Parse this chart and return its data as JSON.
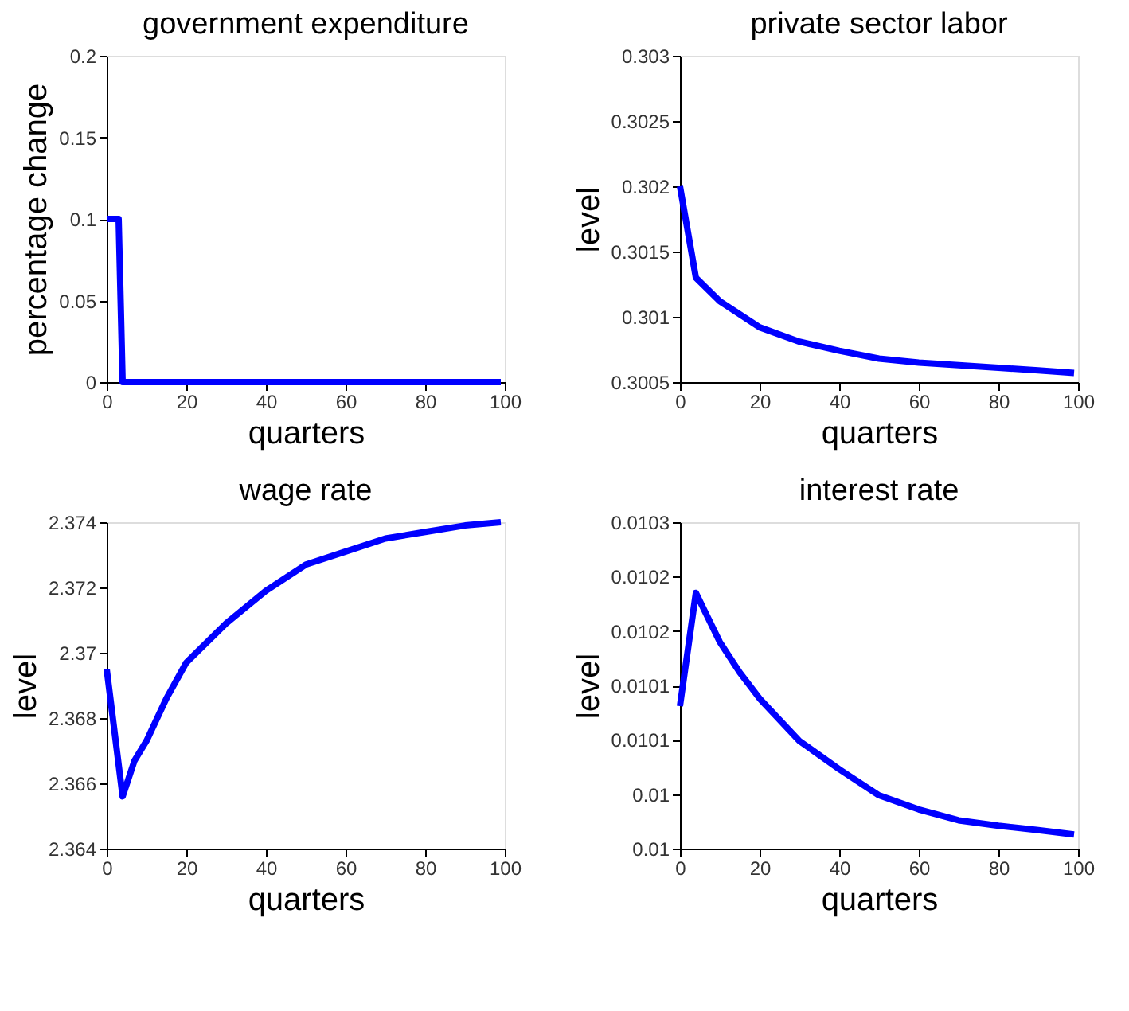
{
  "chart_data": [
    {
      "type": "line",
      "title": "government expenditure",
      "xlabel": "quarters",
      "ylabel": "percentage change",
      "x": [
        0,
        3,
        4,
        99
      ],
      "series": [
        {
          "color": "#0000ff",
          "values": [
            0.1,
            0.1,
            0,
            0
          ]
        }
      ],
      "xlim": [
        0,
        100
      ],
      "xticks": [
        0,
        20,
        40,
        60,
        80,
        100
      ],
      "ylim": [
        0,
        0.2
      ],
      "yticks": [
        0,
        0.05,
        0.1,
        0.15,
        0.2
      ],
      "grid": false,
      "line_style": "solid"
    },
    {
      "type": "line",
      "title": "private sector labor",
      "xlabel": "quarters",
      "ylabel": "level",
      "x": [
        0,
        4,
        10,
        20,
        30,
        40,
        50,
        60,
        70,
        80,
        90,
        99
      ],
      "series": [
        {
          "color": "#0000ff",
          "values": [
            0.302,
            0.3013,
            0.30112,
            0.30092,
            0.30081,
            0.30074,
            0.30068,
            0.30065,
            0.30063,
            0.30061,
            0.30059,
            0.30057
          ]
        }
      ],
      "xlim": [
        0,
        100
      ],
      "xticks": [
        0,
        20,
        40,
        60,
        80,
        100
      ],
      "ylim": [
        0.3005,
        0.303
      ],
      "yticks": [
        0.3005,
        0.301,
        0.3015,
        0.302,
        0.3025,
        0.303
      ],
      "grid": false,
      "line_style": "solid"
    },
    {
      "type": "line",
      "title": "wage rate",
      "xlabel": "quarters",
      "ylabel": "level",
      "x": [
        0,
        4,
        7,
        10,
        15,
        20,
        30,
        40,
        50,
        60,
        70,
        80,
        90,
        99
      ],
      "series": [
        {
          "color": "#0000ff",
          "values": [
            2.3695,
            2.3656,
            2.3667,
            2.3673,
            2.3686,
            2.3697,
            2.3709,
            2.3719,
            2.3727,
            2.3731,
            2.3735,
            2.3737,
            2.3739,
            2.374
          ]
        }
      ],
      "xlim": [
        0,
        100
      ],
      "xticks": [
        0,
        20,
        40,
        60,
        80,
        100
      ],
      "ylim": [
        2.364,
        2.374
      ],
      "yticks": [
        2.364,
        2.366,
        2.368,
        2.37,
        2.372,
        2.374
      ],
      "grid": false,
      "line_style": "solid"
    },
    {
      "type": "line",
      "title": "interest rate",
      "xlabel": "quarters",
      "ylabel": "level",
      "x": [
        0,
        4,
        10,
        15,
        20,
        30,
        40,
        50,
        60,
        70,
        80,
        90,
        99
      ],
      "series": [
        {
          "color": "#0000ff",
          "values": [
            0.010131,
            0.010235,
            0.01019,
            0.010162,
            0.010138,
            0.010099,
            0.010073,
            0.010049,
            0.010036,
            0.010026,
            0.010021,
            0.010017,
            0.010013
          ]
        }
      ],
      "xlim": [
        0,
        100
      ],
      "xticks": [
        0,
        20,
        40,
        60,
        80,
        100
      ],
      "ylim": [
        0.01,
        0.0103
      ],
      "yticks": [
        {
          "value": 0.01,
          "label": "0.01"
        },
        {
          "value": 0.01005,
          "label": "0.01"
        },
        {
          "value": 0.0101,
          "label": "0.0101"
        },
        {
          "value": 0.01015,
          "label": "0.0101"
        },
        {
          "value": 0.0102,
          "label": "0.0102"
        },
        {
          "value": 0.01025,
          "label": "0.0102"
        },
        {
          "value": 0.0103,
          "label": "0.0103"
        }
      ],
      "grid": false,
      "line_style": "solid"
    }
  ]
}
